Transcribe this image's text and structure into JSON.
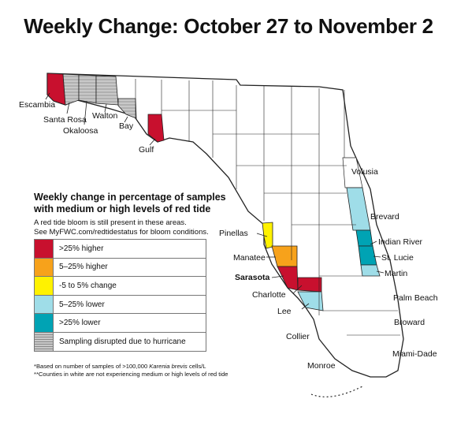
{
  "title": "Weekly Change: October 27 to November 2",
  "colors": {
    "more_than_25_higher": "#c8102e",
    "higher_5_25": "#f7a21b",
    "no_change": "#fff200",
    "lower_5_25": "#9fdde8",
    "more_than_25_lower": "#00a3b4",
    "disrupted": "#c8c8c8",
    "not_affected": "#ffffff"
  },
  "legend": {
    "title": "Weekly change in percentage of samples with medium or high levels of red tide",
    "note_line1": "A red tide bloom is still present in these areas.",
    "note_line2": "See MyFWC.com/redtidestatus for bloom conditions.",
    "items": [
      {
        "label": ">25% higher",
        "color": "#c8102e"
      },
      {
        "label": "5–25% higher",
        "color": "#f7a21b"
      },
      {
        "label": "-5 to 5% change",
        "color": "#fff200"
      },
      {
        "label": "5–25% lower",
        "color": "#9fdde8"
      },
      {
        "label": ">25% lower",
        "color": "#00a3b4"
      },
      {
        "label": "Sampling disrupted due to hurricane",
        "color": "#c8c8c8"
      }
    ]
  },
  "footnotes": {
    "line1_prefix": "*Based on number of samples of >100,000 ",
    "line1_species": "Karenia brevis",
    "line1_suffix": " cells/L",
    "line2": "**Counties in white are not experiencing medium or high levels of red tide"
  },
  "county_labels": {
    "escambia": "Escambia",
    "santa_rosa": "Santa Rosa",
    "okaloosa": "Okaloosa",
    "walton": "Walton",
    "bay": "Bay",
    "gulf": "Gulf",
    "volusia": "Volusia",
    "brevard": "Brevard",
    "indian_river": "Indian River",
    "st_lucie": "St. Lucie",
    "martin": "Martin",
    "palm_beach": "Palm Beach",
    "broward": "Broward",
    "miami_dade": "Miami-Dade",
    "monroe": "Monroe",
    "collier": "Collier",
    "lee": "Lee",
    "charlotte": "Charlotte",
    "sarasota": "Sarasota",
    "manatee": "Manatee",
    "pinellas": "Pinellas"
  },
  "county_status": {
    "escambia": "more_than_25_higher",
    "santa_rosa": "disrupted",
    "okaloosa": "disrupted",
    "walton": "disrupted",
    "bay": "disrupted",
    "gulf": "more_than_25_higher",
    "pinellas": "no_change",
    "manatee": "higher_5_25",
    "sarasota": "more_than_25_higher",
    "charlotte": "more_than_25_higher",
    "lee": "lower_5_25",
    "volusia": "lower_5_25",
    "brevard": "lower_5_25",
    "indian_river": "more_than_25_lower",
    "st_lucie": "more_than_25_lower",
    "martin": "lower_5_25"
  }
}
